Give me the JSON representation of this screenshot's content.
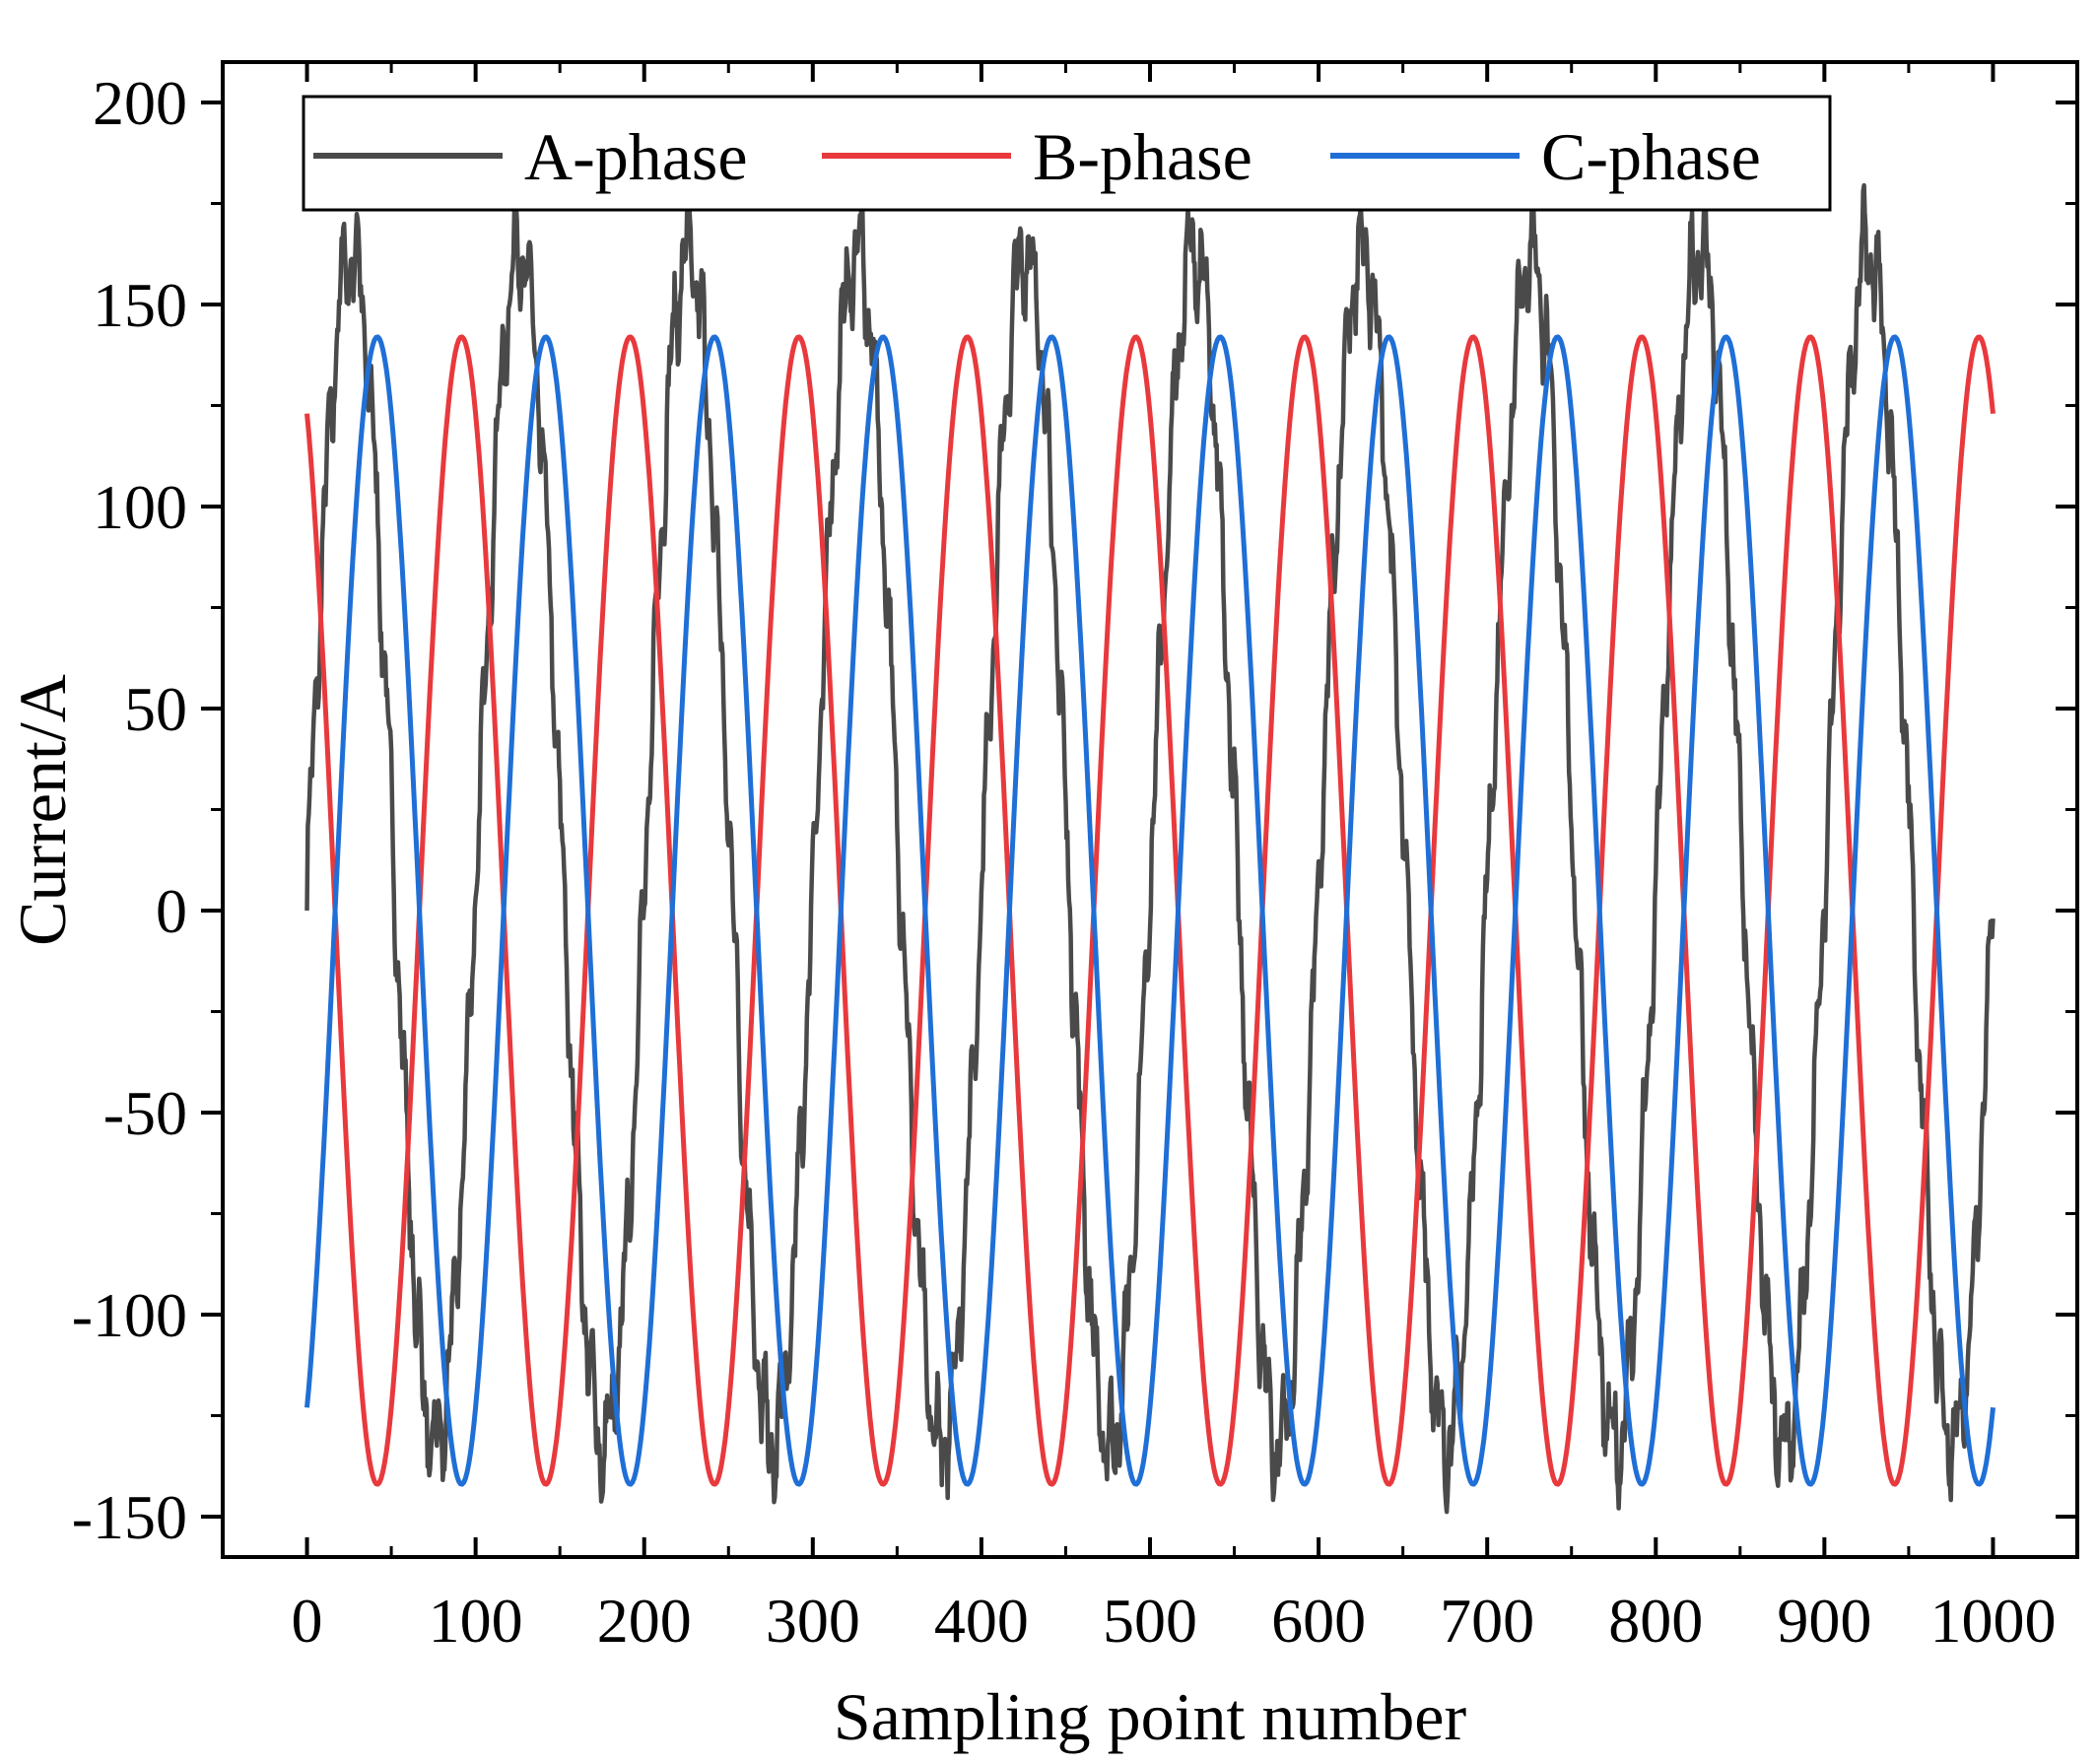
{
  "chart_data": {
    "type": "line",
    "xlabel": "Sampling point number",
    "ylabel": "Current/A",
    "xlim": [
      -50,
      1050
    ],
    "ylim": [
      -160,
      210
    ],
    "xticks": [
      "0",
      "100",
      "200",
      "300",
      "400",
      "500",
      "600",
      "700",
      "800",
      "900",
      "1000"
    ],
    "yticks": [
      "-150",
      "-100",
      "-50",
      "0",
      "50",
      "100",
      "150",
      "200"
    ],
    "grid": false,
    "legend_position": "top",
    "series": [
      {
        "name": "A-phase",
        "color": "#4a4a4a",
        "shape": "noisy sine",
        "amplitude": 148,
        "period": 100,
        "offset": 15,
        "start_value": 5,
        "end_value": 15,
        "x_range": [
          0,
          1000
        ]
      },
      {
        "name": "B-phase",
        "color": "#e8393d",
        "shape": "sine",
        "amplitude": 142,
        "period": 100,
        "start_value": 123,
        "end_value": 123,
        "x_range": [
          0,
          1000
        ]
      },
      {
        "name": "C-phase",
        "color": "#1f6fd6",
        "shape": "sine",
        "amplitude": 142,
        "period": 100,
        "start_value": -123,
        "end_value": -123,
        "x_range": [
          0,
          1000
        ]
      }
    ]
  }
}
